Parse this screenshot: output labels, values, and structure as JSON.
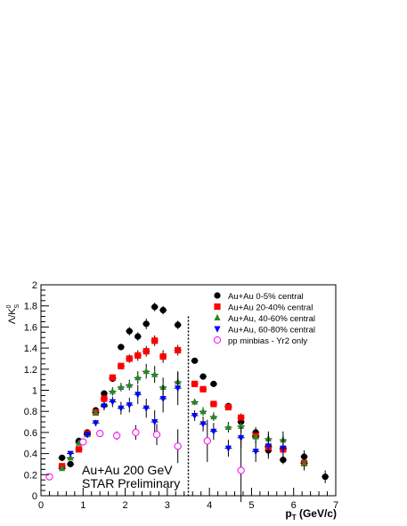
{
  "chart_data": {
    "type": "scatter",
    "title": "",
    "xlabel": "p_T (GeV/c)",
    "xlabel_main": "p",
    "xlabel_sub": "T",
    "xlabel_unit": " (GeV/c)",
    "ylabel_lambda": "Λ/K",
    "ylabel_sup": "0",
    "ylabel_sub": "S",
    "xlim": [
      0,
      7
    ],
    "ylim": [
      0,
      2
    ],
    "xticks": [
      "0",
      "1",
      "2",
      "3",
      "4",
      "5",
      "6",
      "7"
    ],
    "yticks": [
      "0",
      "0.2",
      "0.4",
      "0.6",
      "0.8",
      "1",
      "1.2",
      "1.4",
      "1.6",
      "1.8",
      "2"
    ],
    "divider_x": 3.5,
    "annotations": [
      "Au+Au 200 GeV",
      "STAR Preliminary"
    ],
    "legend_position": "top-right",
    "series": [
      {
        "name": "Au+Au 0-5% central",
        "marker": "circle",
        "color": "#000000",
        "points": [
          [
            0.5,
            0.36,
            0.02
          ],
          [
            0.7,
            0.3,
            0.02
          ],
          [
            0.9,
            0.52,
            0.02
          ],
          [
            1.1,
            0.6,
            0.02
          ],
          [
            1.3,
            0.81,
            0.02
          ],
          [
            1.5,
            0.97,
            0.03
          ],
          [
            1.7,
            1.11,
            0.03
          ],
          [
            1.9,
            1.41,
            0.03
          ],
          [
            2.1,
            1.56,
            0.04
          ],
          [
            2.3,
            1.51,
            0.04
          ],
          [
            2.5,
            1.63,
            0.05
          ],
          [
            2.7,
            1.79,
            0.04
          ],
          [
            2.9,
            1.76,
            0.04
          ],
          [
            3.25,
            1.62,
            0.04
          ],
          [
            3.65,
            1.28,
            0.02
          ],
          [
            3.85,
            1.13,
            0.02
          ],
          [
            4.1,
            1.06,
            0.02
          ],
          [
            4.45,
            0.85,
            0.02
          ],
          [
            4.75,
            0.7,
            0.03
          ],
          [
            5.1,
            0.6,
            0.05
          ],
          [
            5.4,
            0.43,
            0.05
          ],
          [
            5.75,
            0.34,
            0.04
          ],
          [
            6.25,
            0.37,
            0.06
          ],
          [
            6.75,
            0.18,
            0.06
          ]
        ]
      },
      {
        "name": "Au+Au 20-40% central",
        "marker": "square",
        "color": "#ff0000",
        "points": [
          [
            0.5,
            0.28,
            0.02
          ],
          [
            0.9,
            0.44,
            0.02
          ],
          [
            1.1,
            0.59,
            0.02
          ],
          [
            1.3,
            0.79,
            0.02
          ],
          [
            1.5,
            0.92,
            0.03
          ],
          [
            1.7,
            1.12,
            0.03
          ],
          [
            1.9,
            1.23,
            0.03
          ],
          [
            2.1,
            1.3,
            0.04
          ],
          [
            2.3,
            1.33,
            0.05
          ],
          [
            2.5,
            1.37,
            0.05
          ],
          [
            2.7,
            1.47,
            0.05
          ],
          [
            2.9,
            1.32,
            0.06
          ],
          [
            3.25,
            1.38,
            0.05
          ],
          [
            3.65,
            1.06,
            0.02
          ],
          [
            3.85,
            1.01,
            0.02
          ],
          [
            4.1,
            0.87,
            0.02
          ],
          [
            4.45,
            0.84,
            0.03
          ],
          [
            4.75,
            0.74,
            0.04
          ],
          [
            5.1,
            0.57,
            0.04
          ],
          [
            5.4,
            0.46,
            0.05
          ],
          [
            5.75,
            0.44,
            0.05
          ],
          [
            6.25,
            0.31,
            0.05
          ]
        ]
      },
      {
        "name": "Au+Au, 40-60% central",
        "marker": "triangle-up",
        "color": "#228b22",
        "points": [
          [
            0.5,
            0.26,
            0.02
          ],
          [
            0.7,
            0.36,
            0.02
          ],
          [
            0.9,
            0.5,
            0.02
          ],
          [
            1.1,
            0.58,
            0.02
          ],
          [
            1.3,
            0.79,
            0.02
          ],
          [
            1.5,
            0.86,
            0.03
          ],
          [
            1.7,
            0.99,
            0.04
          ],
          [
            1.9,
            1.03,
            0.04
          ],
          [
            2.1,
            1.05,
            0.05
          ],
          [
            2.3,
            1.12,
            0.06
          ],
          [
            2.5,
            1.18,
            0.07
          ],
          [
            2.7,
            1.15,
            0.08
          ],
          [
            2.9,
            1.03,
            0.09
          ],
          [
            3.25,
            1.08,
            0.09
          ],
          [
            3.65,
            0.89,
            0.03
          ],
          [
            3.85,
            0.8,
            0.04
          ],
          [
            4.1,
            0.75,
            0.04
          ],
          [
            4.45,
            0.65,
            0.05
          ],
          [
            4.75,
            0.66,
            0.06
          ],
          [
            5.1,
            0.56,
            0.06
          ],
          [
            5.4,
            0.54,
            0.07
          ],
          [
            5.75,
            0.53,
            0.08
          ],
          [
            6.25,
            0.31,
            0.07
          ]
        ]
      },
      {
        "name": "Au+Au, 60-80% central",
        "marker": "triangle-down",
        "color": "#0000ff",
        "points": [
          [
            0.7,
            0.4,
            0.02
          ],
          [
            1.1,
            0.58,
            0.03
          ],
          [
            1.3,
            0.69,
            0.03
          ],
          [
            1.5,
            0.85,
            0.04
          ],
          [
            1.7,
            0.89,
            0.05
          ],
          [
            1.9,
            0.83,
            0.06
          ],
          [
            2.1,
            0.86,
            0.07
          ],
          [
            2.3,
            0.96,
            0.09
          ],
          [
            2.5,
            0.83,
            0.09
          ],
          [
            2.7,
            0.7,
            0.11
          ],
          [
            2.9,
            0.92,
            0.13
          ],
          [
            3.25,
            1.02,
            0.16
          ],
          [
            3.65,
            0.76,
            0.05
          ],
          [
            3.85,
            0.68,
            0.07
          ],
          [
            4.1,
            0.61,
            0.08
          ],
          [
            4.45,
            0.45,
            0.08
          ],
          [
            4.75,
            0.55,
            0.1
          ],
          [
            5.1,
            0.42,
            0.1
          ],
          [
            5.4,
            0.47,
            0.12
          ],
          [
            5.75,
            0.45,
            0.12
          ]
        ]
      },
      {
        "name": "pp minbias - Yr2 only",
        "marker": "circle-open",
        "color": "#ff00ff",
        "points": [
          [
            0.2,
            0.18,
            0.03
          ],
          [
            1.0,
            0.51,
            0.03
          ],
          [
            1.4,
            0.59,
            0.03
          ],
          [
            1.8,
            0.57,
            0.04
          ],
          [
            2.25,
            0.6,
            0.07
          ],
          [
            2.75,
            0.58,
            0.1
          ],
          [
            3.25,
            0.47,
            0.16
          ],
          [
            3.95,
            0.52,
            0.2
          ],
          [
            4.75,
            0.24,
            0.3
          ]
        ]
      }
    ]
  }
}
